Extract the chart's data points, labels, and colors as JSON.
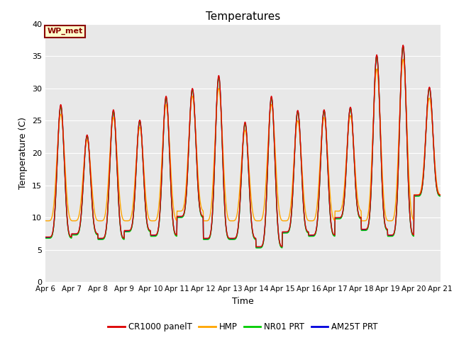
{
  "title": "Temperatures",
  "xlabel": "Time",
  "ylabel": "Temperature (C)",
  "ylim": [
    0,
    40
  ],
  "annotation": "WP_met",
  "annotation_bg": "#FFFFCC",
  "annotation_border": "#8B0000",
  "bg_color": "#E8E8E8",
  "series": {
    "CR1000 panelT": {
      "color": "#DD0000",
      "lw": 1.0
    },
    "HMP": {
      "color": "#FFA500",
      "lw": 1.0
    },
    "NR01 PRT": {
      "color": "#00CC00",
      "lw": 1.0
    },
    "AM25T PRT": {
      "color": "#0000DD",
      "lw": 1.0
    }
  },
  "xtick_labels": [
    "Apr 6",
    "Apr 7",
    "Apr 8",
    "Apr 9",
    "Apr 10",
    "Apr 11",
    "Apr 12",
    "Apr 13",
    "Apr 14",
    "Apr 15",
    "Apr 16",
    "Apr 17",
    "Apr 18",
    "Apr 19",
    "Apr 20",
    "Apr 21"
  ],
  "ytick_vals": [
    0,
    5,
    10,
    15,
    20,
    25,
    30,
    35,
    40
  ],
  "day_peaks_cr": [
    27.5,
    22.8,
    26.7,
    25.1,
    28.8,
    30.0,
    32.0,
    24.8,
    28.8,
    26.6,
    26.7,
    27.1,
    35.2,
    36.7,
    30.2
  ],
  "day_peaks_hmp": [
    26.0,
    22.0,
    25.5,
    24.0,
    27.5,
    28.8,
    30.0,
    23.5,
    27.5,
    25.0,
    25.5,
    25.8,
    33.0,
    34.5,
    28.5
  ],
  "day_peaks_nr": [
    27.2,
    22.6,
    26.4,
    24.9,
    28.5,
    29.8,
    31.7,
    24.5,
    28.5,
    26.4,
    26.5,
    26.9,
    35.0,
    36.5,
    30.0
  ],
  "day_peaks_am": [
    27.3,
    22.7,
    26.5,
    25.0,
    28.6,
    29.9,
    31.8,
    24.6,
    28.6,
    26.5,
    26.6,
    27.0,
    35.1,
    36.6,
    30.1
  ],
  "day_mins_cr": [
    7.0,
    7.5,
    6.8,
    8.0,
    7.3,
    10.2,
    6.8,
    6.8,
    5.5,
    7.8,
    7.3,
    10.0,
    8.2,
    7.3,
    13.5
  ],
  "day_mins_hmp": [
    9.5,
    9.5,
    9.5,
    9.5,
    9.5,
    11.0,
    9.5,
    9.5,
    9.5,
    9.5,
    9.5,
    11.0,
    9.5,
    9.5,
    13.5
  ],
  "day_mins_nr": [
    6.8,
    7.3,
    6.6,
    7.8,
    7.1,
    10.0,
    6.6,
    6.6,
    5.3,
    7.6,
    7.1,
    9.8,
    8.0,
    7.1,
    13.3
  ],
  "day_mins_am": [
    6.9,
    7.4,
    6.7,
    7.9,
    7.2,
    10.1,
    6.7,
    6.7,
    5.4,
    7.7,
    7.2,
    9.9,
    8.1,
    7.2,
    13.4
  ],
  "peak_sharpness": 3.0,
  "peak_time": 0.583
}
